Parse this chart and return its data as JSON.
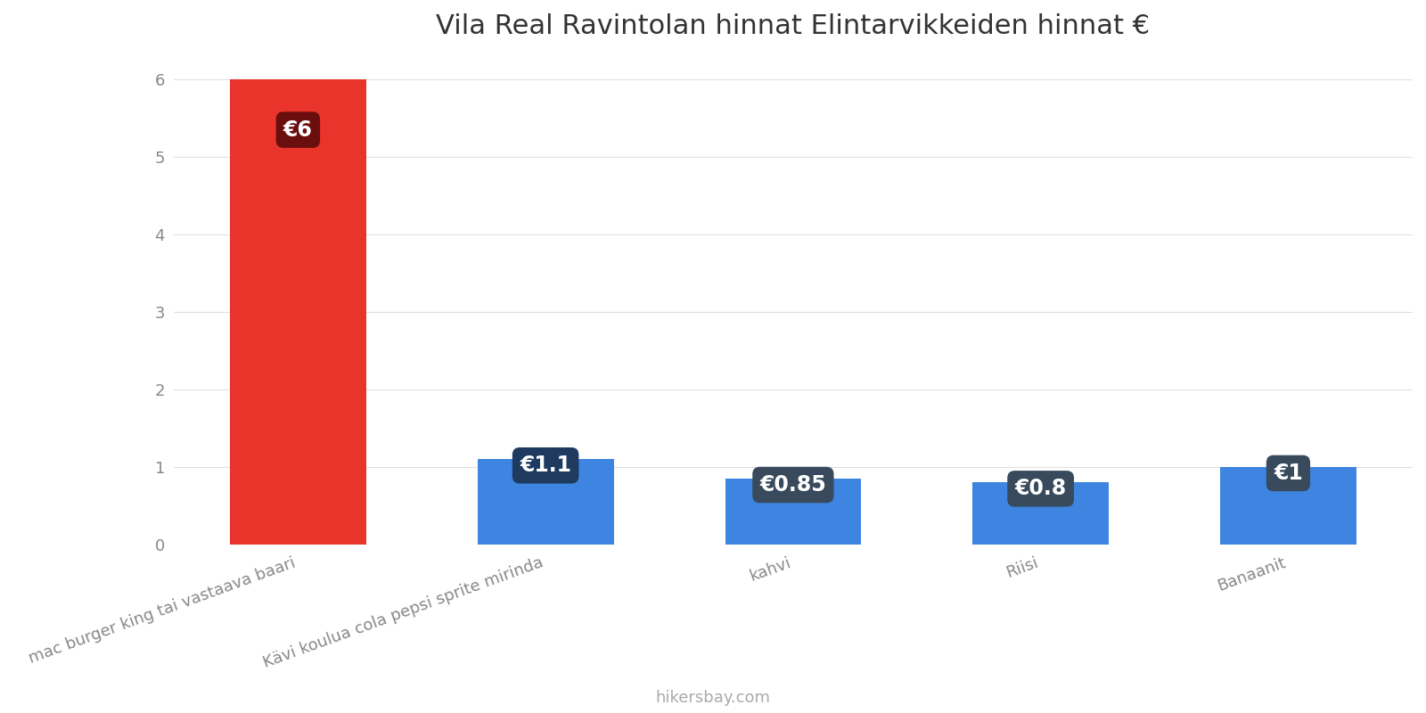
{
  "title": "Vila Real Ravintolan hinnat Elintarvikkeiden hinnat €",
  "categories": [
    "mac burger king tai vastaava baari",
    "Kävi koulua cola pepsi sprite mirinda",
    "kahvi",
    "Riisi",
    "Banaanit"
  ],
  "values": [
    6,
    1.1,
    0.85,
    0.8,
    1.0
  ],
  "bar_colors": [
    "#e8342a",
    "#3d85e0",
    "#3d85e0",
    "#3d85e0",
    "#3d85e0"
  ],
  "label_texts": [
    "€6",
    "€1.1",
    "€0.85",
    "€0.8",
    "€1"
  ],
  "label_bg_colors": [
    "#6b0e0e",
    "#1e3a5f",
    "#384a5c",
    "#384a5c",
    "#384a5c"
  ],
  "ylim": [
    0,
    6.3
  ],
  "yticks": [
    0,
    1,
    2,
    3,
    4,
    5,
    6
  ],
  "footer_text": "hikersbay.com",
  "background_color": "#ffffff",
  "grid_color": "#e0e0e0",
  "title_fontsize": 22,
  "tick_fontsize": 13,
  "label_fontsize": 17,
  "footer_fontsize": 13
}
